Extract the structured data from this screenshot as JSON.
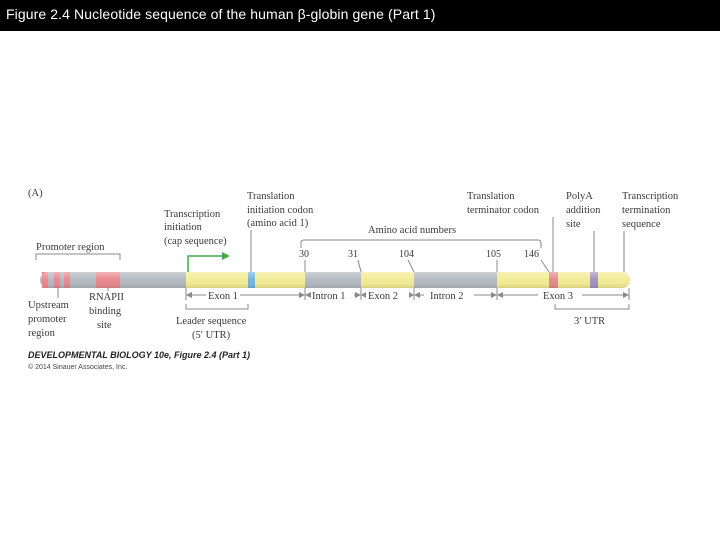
{
  "title": "Figure 2.4 Nucleotide sequence of the human β-globin gene (Part 1)",
  "panel_label": "(A)",
  "labels": {
    "promoter_region": "Promoter region",
    "upstream": [
      "Upstream",
      "promoter",
      "region"
    ],
    "rnapii": [
      "RNAPII",
      "binding",
      "site"
    ],
    "transcription_initiation": [
      "Transcription",
      "initiation",
      "(cap sequence)"
    ],
    "leader_sequence": [
      "Leader sequence",
      "(5′ UTR)"
    ],
    "translation_initiation": [
      "Translation",
      "initiation codon",
      "(amino acid 1)"
    ],
    "amino_acid_numbers": "Amino acid numbers",
    "translation_terminator": [
      "Translation",
      "terminator codon"
    ],
    "polya": [
      "PolyA",
      "addition",
      "site"
    ],
    "transcription_termination": [
      "Transcription",
      "termination",
      "sequence"
    ],
    "utr3": "3′ UTR"
  },
  "segments": {
    "exon1": "Exon 1",
    "intron1": "Intron 1",
    "exon2": "Exon 2",
    "intron2": "Intron 2",
    "exon3": "Exon 3"
  },
  "amino_acids": [
    "30",
    "31",
    "104",
    "105",
    "146"
  ],
  "credit": "DEVELOPMENTAL BIOLOGY 10e, Figure 2.4 (Part 1)",
  "copyright": "© 2014 Sinauer Associates, Inc.",
  "colors": {
    "gray_bar": "#b4b9c0",
    "exon_yellow": "#f3ec95",
    "promoter_red": "#e9888d",
    "codon_blue": "#74b7d8",
    "polya_purple": "#a294c0",
    "arrow_green": "#3fae49",
    "bracket_gray": "#8a8a8a"
  }
}
